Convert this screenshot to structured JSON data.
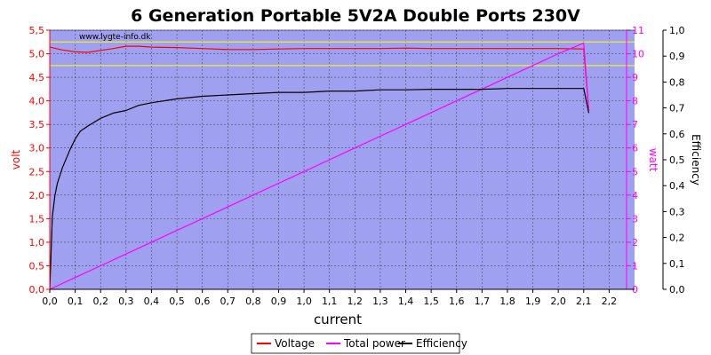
{
  "chart_data": {
    "type": "line",
    "title": "6 Generation Portable 5V2A Double Ports 230V",
    "watermark": "www.lygte-info.dk",
    "xlabel": "current",
    "xlim": [
      0,
      2.3
    ],
    "x_ticks": [
      "0,0",
      "0,1",
      "0,2",
      "0,3",
      "0,4",
      "0,5",
      "0,6",
      "0,7",
      "0,8",
      "0,9",
      "1,0",
      "1,1",
      "1,2",
      "1,3",
      "1,4",
      "1,5",
      "1,6",
      "1,7",
      "1,8",
      "1,9",
      "2,0",
      "2,1",
      "2,2"
    ],
    "y_left": {
      "label": "volt",
      "lim": [
        0,
        5.5
      ],
      "ticks": [
        "0,0",
        "0,5",
        "1,0",
        "1,5",
        "2,0",
        "2,5",
        "3,0",
        "3,5",
        "4,0",
        "4,5",
        "5,0",
        "5,5"
      ],
      "color": "#ff0000"
    },
    "y_mid": {
      "label": "watt",
      "lim": [
        0,
        11
      ],
      "ticks": [
        "0",
        "1",
        "2",
        "3",
        "4",
        "5",
        "6",
        "7",
        "8",
        "9",
        "10",
        "11"
      ],
      "color": "#ff00ff"
    },
    "y_right": {
      "label": "Efficiency",
      "lim": [
        0,
        1.0
      ],
      "ticks": [
        "0,0",
        "0,1",
        "0,2",
        "0,3",
        "0,4",
        "0,5",
        "0,6",
        "0,7",
        "0,8",
        "0,9",
        "1,0"
      ],
      "color": "#000000"
    },
    "reference_lines": {
      "color": "#ffff00",
      "values_volt": [
        5.25,
        4.75
      ]
    },
    "plot_background": "#a0a0f0",
    "grid": true,
    "legend_position": "bottom-center",
    "series": [
      {
        "name": "Voltage",
        "color": "#ff0000",
        "axis": "volt",
        "x": [
          0.0,
          0.05,
          0.1,
          0.15,
          0.2,
          0.25,
          0.3,
          0.35,
          0.4,
          0.5,
          0.6,
          0.7,
          0.8,
          0.9,
          1.0,
          1.1,
          1.2,
          1.3,
          1.4,
          1.5,
          1.6,
          1.7,
          1.8,
          1.9,
          2.0,
          2.1,
          2.12
        ],
        "values": [
          5.14,
          5.08,
          5.04,
          5.03,
          5.07,
          5.11,
          5.16,
          5.16,
          5.14,
          5.13,
          5.11,
          5.09,
          5.09,
          5.1,
          5.11,
          5.11,
          5.11,
          5.11,
          5.12,
          5.11,
          5.11,
          5.11,
          5.11,
          5.11,
          5.11,
          5.1,
          3.8
        ]
      },
      {
        "name": "Total power",
        "color": "#ff00ff",
        "axis": "watt",
        "x": [
          0.0,
          0.1,
          0.2,
          0.3,
          0.4,
          0.5,
          0.6,
          0.7,
          0.8,
          0.9,
          1.0,
          1.1,
          1.2,
          1.3,
          1.4,
          1.5,
          1.6,
          1.7,
          1.8,
          1.9,
          2.0,
          2.1,
          2.12
        ],
        "values": [
          0.0,
          0.5,
          1.0,
          1.5,
          2.0,
          2.5,
          3.0,
          3.5,
          4.0,
          4.5,
          5.0,
          5.5,
          6.0,
          6.5,
          7.0,
          7.5,
          8.0,
          8.5,
          9.0,
          9.5,
          10.0,
          10.45,
          7.6
        ]
      },
      {
        "name": "Efficiency",
        "color": "#000000",
        "axis": "efficiency",
        "x": [
          0.0,
          0.01,
          0.02,
          0.03,
          0.05,
          0.08,
          0.1,
          0.12,
          0.15,
          0.2,
          0.25,
          0.3,
          0.35,
          0.4,
          0.5,
          0.6,
          0.7,
          0.8,
          0.9,
          1.0,
          1.1,
          1.2,
          1.3,
          1.4,
          1.5,
          1.6,
          1.7,
          1.8,
          1.9,
          2.0,
          2.1,
          2.12
        ],
        "values": [
          0.0,
          0.28,
          0.36,
          0.41,
          0.47,
          0.54,
          0.58,
          0.61,
          0.63,
          0.66,
          0.68,
          0.69,
          0.71,
          0.72,
          0.735,
          0.745,
          0.75,
          0.755,
          0.76,
          0.76,
          0.765,
          0.765,
          0.77,
          0.77,
          0.772,
          0.772,
          0.772,
          0.775,
          0.775,
          0.775,
          0.775,
          0.68
        ]
      }
    ]
  }
}
